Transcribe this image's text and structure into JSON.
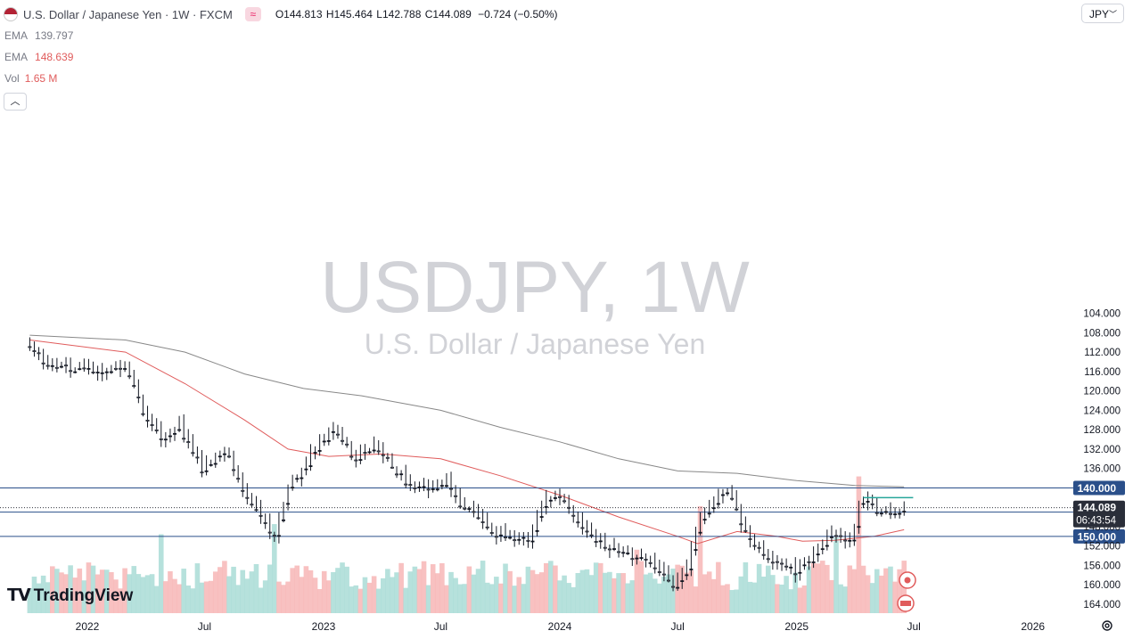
{
  "header": {
    "title": "U.S. Dollar / Japanese Yen · 1W · FXCM",
    "open_label": "O",
    "open": "144.813",
    "high_label": "H",
    "high": "145.464",
    "low_label": "L",
    "low": "142.788",
    "close_label": "C",
    "close": "144.089",
    "change": "−0.724 (−0.50%)",
    "flag_icon": "us-flag-icon",
    "indicator_icon": "approx-equal-icon"
  },
  "indicators": [
    {
      "name": "EMA",
      "value": "139.797",
      "color": "#787b86"
    },
    {
      "name": "EMA",
      "value": "148.639",
      "color": "#e05c5c"
    },
    {
      "name": "Vol",
      "value": "1.65 M",
      "color": "#e05c5c"
    }
  ],
  "currency_select": "JPY",
  "watermark": {
    "symbol": "USDJPY, 1W",
    "name": "U.S. Dollar / Japanese Yen"
  },
  "logo": "TradingView",
  "price_badges": {
    "last": "144.089",
    "countdown": "06:43:54"
  },
  "horizontal_levels": [
    {
      "label": "150.000",
      "value": 150
    },
    {
      "label": "145.000",
      "value": 145
    },
    {
      "label": "140.000",
      "value": 140
    }
  ],
  "colors": {
    "up": "#131722",
    "down": "#131722",
    "ema_slow": "#888888",
    "ema_fast": "#e05c5c",
    "level_line": "#2a4f8a",
    "vol_up": "#a9dcd6",
    "vol_down": "#f7b6b6",
    "support": "#26a69a",
    "badge": "#2a4f8a"
  },
  "chart_data": {
    "type": "candlestick",
    "title": "U.S. Dollar / Japanese Yen · 1W · FXCM",
    "y_axis": {
      "ticks": [
        "164.000",
        "160.000",
        "156.000",
        "152.000",
        "148.000",
        "144.000",
        "136.000",
        "132.000",
        "128.000",
        "124.000",
        "120.000",
        "116.000",
        "112.000",
        "108.000",
        "104.000"
      ],
      "ylim": [
        102.9,
        165.9
      ]
    },
    "x_axis": {
      "ticks": [
        "2022",
        "Jul",
        "2023",
        "Jul",
        "2024",
        "Jul",
        "2025",
        "Jul",
        "2026"
      ]
    },
    "support_line": 142.0,
    "anchors": [
      [
        "2021-10-04",
        111.0
      ],
      [
        "2021-11-01",
        114.5
      ],
      [
        "2022-01-03",
        115.5
      ],
      [
        "2022-02-28",
        115.0
      ],
      [
        "2022-03-28",
        124.0
      ],
      [
        "2022-04-25",
        130.0
      ],
      [
        "2022-05-23",
        127.5
      ],
      [
        "2022-06-27",
        136.0
      ],
      [
        "2022-08-01",
        132.0
      ],
      [
        "2022-08-29",
        140.0
      ],
      [
        "2022-10-17",
        150.0
      ],
      [
        "2022-11-07",
        140.0
      ],
      [
        "2022-12-19",
        132.0
      ],
      [
        "2023-01-16",
        128.0
      ],
      [
        "2023-02-20",
        134.0
      ],
      [
        "2023-03-20",
        130.5
      ],
      [
        "2023-04-24",
        137.0
      ],
      [
        "2023-05-22",
        140.0
      ],
      [
        "2023-07-10",
        139.0
      ],
      [
        "2023-07-31",
        143.0
      ],
      [
        "2023-09-25",
        149.5
      ],
      [
        "2023-11-13",
        150.5
      ],
      [
        "2023-12-11",
        142.0
      ],
      [
        "2024-01-01",
        141.5
      ],
      [
        "2024-02-19",
        150.0
      ],
      [
        "2024-04-15",
        154.0
      ],
      [
        "2024-05-06",
        153.5
      ],
      [
        "2024-06-24",
        160.5
      ],
      [
        "2024-07-15",
        157.0
      ],
      [
        "2024-08-05",
        146.0
      ],
      [
        "2024-09-16",
        140.5
      ],
      [
        "2024-10-14",
        149.5
      ],
      [
        "2024-11-18",
        154.5
      ],
      [
        "2024-12-30",
        157.5
      ],
      [
        "2025-01-20",
        154.5
      ],
      [
        "2025-02-24",
        149.5
      ],
      [
        "2025-03-24",
        150.5
      ],
      [
        "2025-04-07",
        144.0
      ],
      [
        "2025-04-21",
        142.5
      ],
      [
        "2025-05-12",
        145.5
      ],
      [
        "2025-06-16",
        144.089
      ]
    ],
    "ema_fast_series": [
      [
        "2021-10-04",
        109.5
      ],
      [
        "2022-03-01",
        112.0
      ],
      [
        "2022-06-01",
        118.5
      ],
      [
        "2022-09-01",
        126.0
      ],
      [
        "2022-11-07",
        132.0
      ],
      [
        "2023-01-09",
        133.5
      ],
      [
        "2023-04-01",
        133.0
      ],
      [
        "2023-07-01",
        134.0
      ],
      [
        "2023-10-01",
        137.5
      ],
      [
        "2024-01-01",
        141.5
      ],
      [
        "2024-04-01",
        146.0
      ],
      [
        "2024-07-01",
        150.0
      ],
      [
        "2024-08-01",
        151.5
      ],
      [
        "2024-10-01",
        149.0
      ],
      [
        "2024-12-01",
        150.0
      ],
      [
        "2025-01-10",
        151.0
      ],
      [
        "2025-03-01",
        150.8
      ],
      [
        "2025-05-01",
        150.0
      ],
      [
        "2025-06-16",
        148.639
      ]
    ],
    "ema_slow_series": [
      [
        "2021-10-04",
        108.5
      ],
      [
        "2022-03-01",
        109.5
      ],
      [
        "2022-06-01",
        112.0
      ],
      [
        "2022-09-01",
        116.5
      ],
      [
        "2022-12-01",
        119.5
      ],
      [
        "2023-03-01",
        121.0
      ],
      [
        "2023-07-01",
        124.0
      ],
      [
        "2023-10-01",
        127.5
      ],
      [
        "2024-01-01",
        130.5
      ],
      [
        "2024-04-01",
        134.0
      ],
      [
        "2024-07-01",
        136.5
      ],
      [
        "2024-10-01",
        137.0
      ],
      [
        "2025-01-01",
        138.5
      ],
      [
        "2025-04-01",
        139.5
      ],
      [
        "2025-06-16",
        139.797
      ]
    ],
    "volume_note": "Vol 1.65 M"
  }
}
